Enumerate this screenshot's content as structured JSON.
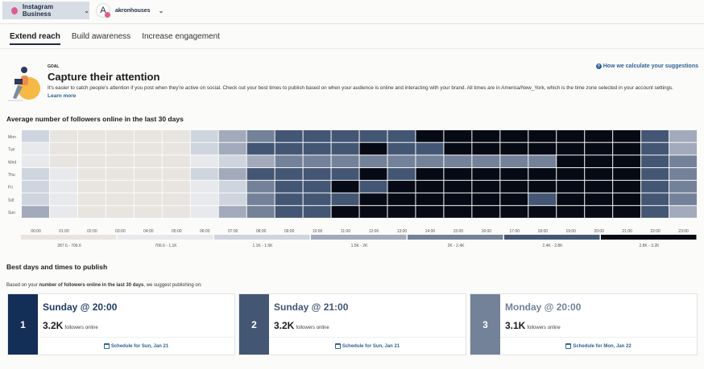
{
  "topbar": {
    "account": "Instagram Business",
    "user_initial": "A",
    "user": "akronhouses"
  },
  "tabs": [
    {
      "label": "Extend reach",
      "active": true
    },
    {
      "label": "Build awareness"
    },
    {
      "label": "Increase engagement"
    }
  ],
  "goal": {
    "label": "GOAL",
    "title": "Capture their attention",
    "description": "It's easier to catch people's attention if you post when they're active on social. Check out your best times to publish based on when your audience is online and interacting with your brand. All times are in America/New_York, which is the time zone selected in your account settings.",
    "learn_more": "Learn more",
    "how_link": "How we calculate your suggestions"
  },
  "chart_data": {
    "type": "heatmap",
    "title": "Average number of followers online in the last 30 days",
    "rows": [
      "Mon",
      "Tue",
      "Wed",
      "Thu",
      "Fri",
      "Sat",
      "Sun"
    ],
    "columns": [
      "00:00",
      "01:00",
      "02:00",
      "03:00",
      "04:00",
      "05:00",
      "06:00",
      "07:00",
      "08:00",
      "09:00",
      "10:00",
      "11:00",
      "12:00",
      "13:00",
      "14:00",
      "15:00",
      "16:00",
      "17:00",
      "18:00",
      "19:00",
      "20:00",
      "21:00",
      "22:00",
      "23:00"
    ],
    "legend": [
      {
        "label": "287.6 - 706.6",
        "color": "#e8e4e0"
      },
      {
        "label": "706.6 - 1.1K",
        "color": "#e8e9ed"
      },
      {
        "label": "1.1K - 1.5K",
        "color": "#cfd5de"
      },
      {
        "label": "1.5K - 2K",
        "color": "#a2aabb"
      },
      {
        "label": "2K - 2.4K",
        "color": "#738298"
      },
      {
        "label": "2.4K - 2.8K",
        "color": "#435674"
      },
      {
        "label": "2.8K - 3.2K",
        "color": "#050a14"
      }
    ],
    "bins": [
      [
        2,
        0,
        0,
        0,
        0,
        0,
        2,
        3,
        4,
        5,
        5,
        5,
        5,
        5,
        6,
        6,
        6,
        6,
        6,
        6,
        6,
        6,
        5,
        3
      ],
      [
        1,
        0,
        0,
        0,
        0,
        0,
        2,
        3,
        5,
        5,
        5,
        5,
        6,
        5,
        5,
        6,
        6,
        6,
        6,
        6,
        6,
        6,
        5,
        3
      ],
      [
        1,
        0,
        0,
        0,
        0,
        0,
        1,
        2,
        3,
        4,
        4,
        4,
        4,
        4,
        4,
        4,
        4,
        4,
        4,
        6,
        6,
        6,
        5,
        4
      ],
      [
        2,
        1,
        0,
        0,
        0,
        0,
        2,
        3,
        5,
        5,
        5,
        5,
        6,
        5,
        6,
        6,
        6,
        6,
        6,
        6,
        6,
        6,
        5,
        4
      ],
      [
        2,
        1,
        0,
        0,
        0,
        0,
        1,
        2,
        4,
        5,
        5,
        6,
        5,
        6,
        6,
        6,
        6,
        6,
        6,
        6,
        6,
        6,
        5,
        4
      ],
      [
        2,
        1,
        0,
        0,
        0,
        0,
        1,
        2,
        4,
        5,
        5,
        5,
        6,
        6,
        6,
        6,
        6,
        6,
        5,
        6,
        6,
        6,
        5,
        4
      ],
      [
        3,
        1,
        0,
        0,
        0,
        0,
        1,
        3,
        4,
        5,
        5,
        6,
        6,
        6,
        6,
        6,
        6,
        6,
        6,
        6,
        6,
        6,
        5,
        3
      ]
    ]
  },
  "best": {
    "title": "Best days and times to publish",
    "intro_pre": "Based on your ",
    "intro_bold": "number of followers online in the last 30 days",
    "intro_post": ", we suggest publishing on:",
    "cards": [
      {
        "rank": "1",
        "title": "Sunday @ 20:00",
        "value": "3.2K",
        "unit": "followers online",
        "schedule": "Schedule for Sun, Jan 21",
        "color": "#132e57",
        "title_color": "#1f3b63"
      },
      {
        "rank": "2",
        "title": "Sunday @ 21:00",
        "value": "3.2K",
        "unit": "followers online",
        "schedule": "Schedule for Sun, Jan 21",
        "color": "#435674",
        "title_color": "#435674"
      },
      {
        "rank": "3",
        "title": "Monday @ 20:00",
        "value": "3.1K",
        "unit": "followers online",
        "schedule": "Schedule for Mon, Jan 22",
        "color": "#738298",
        "title_color": "#738298"
      }
    ]
  }
}
